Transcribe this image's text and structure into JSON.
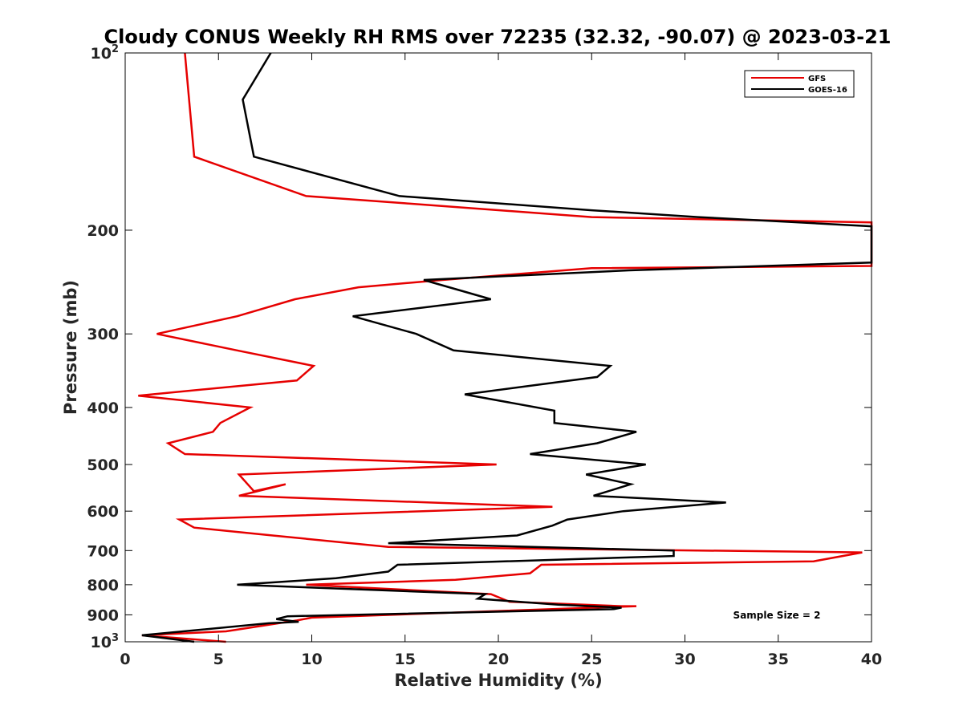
{
  "chart_data": {
    "type": "line",
    "title": "Cloudy CONUS Weekly RH RMS over 72235 (32.32, -90.07) @ 2023-03-21",
    "xlabel": "Relative Humidity (%)",
    "ylabel": "Pressure (mb)",
    "xlim": [
      0,
      40
    ],
    "ylim": [
      100,
      1000
    ],
    "yscale": "log",
    "y_reversed": true,
    "x_ticks": [
      "0",
      "5",
      "10",
      "15",
      "20",
      "25",
      "30",
      "35",
      "40"
    ],
    "y_ticks": [
      {
        "value": 100,
        "base": "10",
        "exp": "2"
      },
      {
        "value": 200,
        "label": "200"
      },
      {
        "value": 300,
        "label": "300"
      },
      {
        "value": 400,
        "label": "400"
      },
      {
        "value": 500,
        "label": "500"
      },
      {
        "value": 600,
        "label": "600"
      },
      {
        "value": 700,
        "label": "700"
      },
      {
        "value": 800,
        "label": "800"
      },
      {
        "value": 900,
        "label": "900"
      },
      {
        "value": 1000,
        "base": "10",
        "exp": "3"
      }
    ],
    "grid": false,
    "legend_position": "top-right",
    "annotation": "Sample Size = 2",
    "series": [
      {
        "name": "GFS",
        "color": "#e60000",
        "points": [
          [
            3.2,
            100
          ],
          [
            3.7,
            150
          ],
          [
            9.7,
            175
          ],
          [
            15,
            180
          ],
          [
            25,
            190
          ],
          [
            40,
            194
          ],
          [
            40,
            230
          ],
          [
            25,
            232
          ],
          [
            17,
            243
          ],
          [
            12.5,
            250
          ],
          [
            9.1,
            262
          ],
          [
            6,
            280
          ],
          [
            1.7,
            300
          ],
          [
            6,
            320
          ],
          [
            10.1,
            340
          ],
          [
            9.2,
            360
          ],
          [
            0.7,
            382
          ],
          [
            6.7,
            400
          ],
          [
            5.1,
            425
          ],
          [
            4.7,
            440
          ],
          [
            2.3,
            460
          ],
          [
            3.2,
            480
          ],
          [
            19.9,
            500
          ],
          [
            6.1,
            520
          ],
          [
            6.9,
            555
          ],
          [
            8.6,
            540
          ],
          [
            6.1,
            565
          ],
          [
            22.9,
            590
          ],
          [
            2.9,
            620
          ],
          [
            3.7,
            640
          ],
          [
            7.9,
            660
          ],
          [
            14.1,
            690
          ],
          [
            39.5,
            705
          ],
          [
            36.9,
            730
          ],
          [
            22.3,
            740
          ],
          [
            21.7,
            765
          ],
          [
            17.7,
            785
          ],
          [
            9.7,
            800
          ],
          [
            19.6,
            830
          ],
          [
            20.6,
            855
          ],
          [
            26.6,
            870
          ],
          [
            27.4,
            870
          ],
          [
            10,
            910
          ],
          [
            9.2,
            920
          ],
          [
            5.4,
            960
          ],
          [
            0.9,
            975
          ],
          [
            5.4,
            1000
          ]
        ]
      },
      {
        "name": "GOES-16",
        "color": "#000000",
        "points": [
          [
            7.8,
            100
          ],
          [
            6.3,
            120
          ],
          [
            6.9,
            150
          ],
          [
            14.7,
            175
          ],
          [
            25,
            185
          ],
          [
            30.7,
            190
          ],
          [
            40,
            197
          ],
          [
            40,
            227
          ],
          [
            27,
            234
          ],
          [
            16,
            243
          ],
          [
            19.6,
            262
          ],
          [
            12.2,
            280
          ],
          [
            15.6,
            300
          ],
          [
            17.6,
            320
          ],
          [
            26,
            340
          ],
          [
            25.3,
            355
          ],
          [
            18.2,
            380
          ],
          [
            23,
            405
          ],
          [
            23,
            425
          ],
          [
            27.4,
            440
          ],
          [
            25.3,
            460
          ],
          [
            21.7,
            480
          ],
          [
            27.9,
            500
          ],
          [
            24.7,
            520
          ],
          [
            27.1,
            540
          ],
          [
            25.1,
            565
          ],
          [
            32.2,
            580
          ],
          [
            26.7,
            600
          ],
          [
            23.7,
            620
          ],
          [
            22.9,
            635
          ],
          [
            21,
            660
          ],
          [
            14.1,
            680
          ],
          [
            29.4,
            700
          ],
          [
            29.4,
            715
          ],
          [
            14.6,
            740
          ],
          [
            14.1,
            760
          ],
          [
            11.3,
            780
          ],
          [
            6,
            800
          ],
          [
            19.3,
            830
          ],
          [
            18.9,
            845
          ],
          [
            23.2,
            865
          ],
          [
            26.6,
            875
          ],
          [
            26.2,
            880
          ],
          [
            8.7,
            905
          ],
          [
            8.1,
            915
          ],
          [
            9.3,
            925
          ],
          [
            7.7,
            930
          ],
          [
            0.9,
            975
          ],
          [
            3.7,
            1000
          ]
        ]
      }
    ]
  }
}
